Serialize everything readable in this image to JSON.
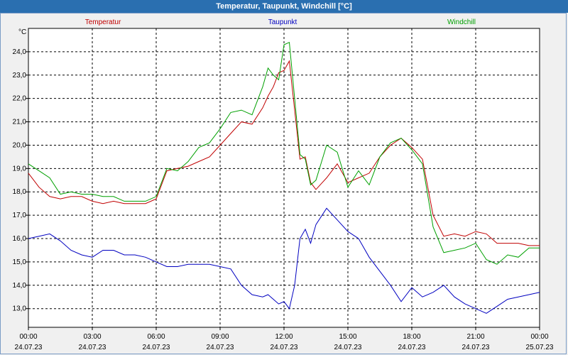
{
  "window": {
    "title": "Temperatur, Taupunkt, Windchill [°C]"
  },
  "chart_data": {
    "type": "line",
    "unit_label": "°C",
    "ylim": [
      12.2,
      25.0
    ],
    "yticks": [
      "13,0",
      "14,0",
      "15,0",
      "16,0",
      "17,0",
      "18,0",
      "19,0",
      "20,0",
      "21,0",
      "22,0",
      "23,0",
      "24,0"
    ],
    "xticks": [
      {
        "time": "00:00",
        "date": "24.07.23"
      },
      {
        "time": "03:00",
        "date": "24.07.23"
      },
      {
        "time": "06:00",
        "date": "24.07.23"
      },
      {
        "time": "09:00",
        "date": "24.07.23"
      },
      {
        "time": "12:00",
        "date": "24.07.23"
      },
      {
        "time": "15:00",
        "date": "24.07.23"
      },
      {
        "time": "18:00",
        "date": "24.07.23"
      },
      {
        "time": "21:00",
        "date": "24.07.23"
      },
      {
        "time": "00:00",
        "date": "25.07.23"
      }
    ],
    "grid": true,
    "x_hours": [
      0,
      0.5,
      1,
      1.5,
      2,
      2.5,
      3,
      3.5,
      4,
      4.5,
      5,
      5.5,
      6,
      6.5,
      7,
      7.5,
      8,
      8.5,
      9,
      9.5,
      10,
      10.5,
      11,
      11.25,
      11.5,
      11.75,
      12,
      12.25,
      12.5,
      12.75,
      13,
      13.25,
      13.5,
      14,
      14.5,
      15,
      15.5,
      16,
      16.5,
      17,
      17.5,
      18,
      18.5,
      19,
      19.5,
      20,
      20.5,
      21,
      21.5,
      22,
      22.5,
      23,
      23.5,
      24
    ],
    "series": [
      {
        "name": "Temperatur",
        "color": "#c00000",
        "values": [
          18.8,
          18.2,
          17.8,
          17.7,
          17.8,
          17.8,
          17.6,
          17.5,
          17.6,
          17.5,
          17.5,
          17.5,
          17.7,
          18.9,
          19.0,
          19.1,
          19.3,
          19.5,
          20.0,
          20.5,
          21.0,
          20.9,
          21.6,
          22.1,
          22.5,
          23.1,
          23.2,
          23.6,
          21.5,
          19.4,
          19.5,
          18.4,
          18.1,
          18.6,
          19.2,
          18.4,
          18.6,
          18.8,
          19.5,
          20.0,
          20.3,
          19.9,
          19.4,
          17.0,
          16.1,
          16.2,
          16.1,
          16.3,
          16.2,
          15.8,
          15.8,
          15.8,
          15.7,
          15.7
        ]
      },
      {
        "name": "Taupunkt",
        "color": "#0000c0",
        "values": [
          16.0,
          16.1,
          16.2,
          15.9,
          15.5,
          15.3,
          15.2,
          15.5,
          15.5,
          15.3,
          15.3,
          15.2,
          15.0,
          14.8,
          14.8,
          14.9,
          14.9,
          14.9,
          14.8,
          14.7,
          14.0,
          13.6,
          13.5,
          13.6,
          13.4,
          13.2,
          13.3,
          13.0,
          14.0,
          16.0,
          16.4,
          15.8,
          16.6,
          17.3,
          16.8,
          16.3,
          16.0,
          15.2,
          14.6,
          14.0,
          13.3,
          13.9,
          13.5,
          13.7,
          14.0,
          13.5,
          13.2,
          13.0,
          12.8,
          13.1,
          13.4,
          13.5,
          13.6,
          13.7
        ]
      },
      {
        "name": "Windchill",
        "color": "#00a000",
        "values": [
          19.2,
          18.9,
          18.6,
          17.9,
          18.0,
          17.9,
          17.9,
          17.8,
          17.8,
          17.6,
          17.6,
          17.6,
          17.8,
          19.0,
          18.9,
          19.3,
          19.9,
          20.1,
          20.7,
          21.4,
          21.5,
          21.3,
          22.5,
          23.3,
          23.0,
          22.8,
          24.3,
          24.4,
          22.0,
          19.6,
          19.4,
          18.3,
          18.5,
          20.0,
          19.7,
          18.2,
          18.9,
          18.3,
          19.5,
          20.1,
          20.3,
          19.8,
          19.2,
          16.5,
          15.4,
          15.5,
          15.6,
          15.8,
          15.1,
          14.9,
          15.3,
          15.2,
          15.6,
          15.6
        ]
      }
    ]
  }
}
